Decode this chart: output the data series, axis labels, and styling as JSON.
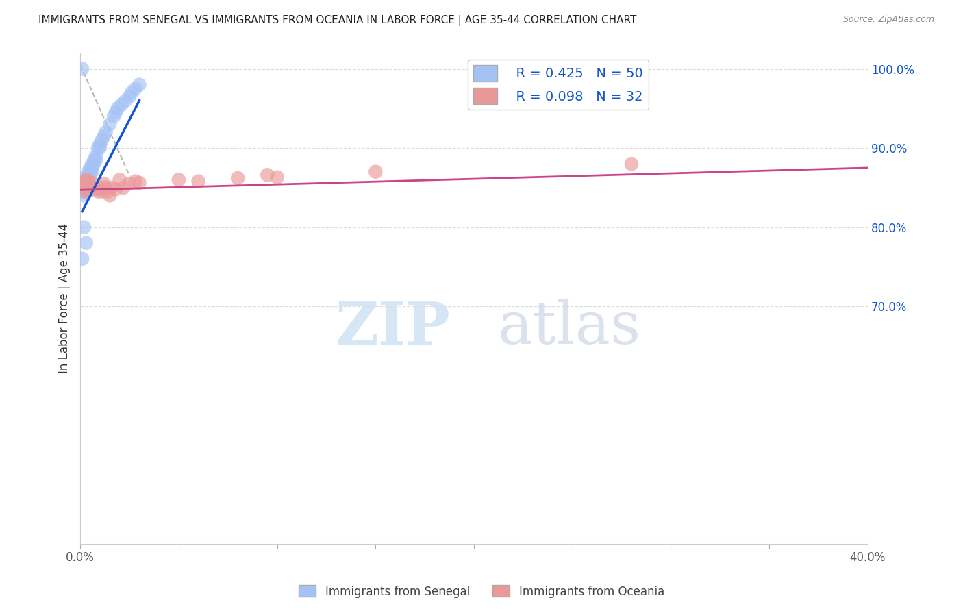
{
  "title": "IMMIGRANTS FROM SENEGAL VS IMMIGRANTS FROM OCEANIA IN LABOR FORCE | AGE 35-44 CORRELATION CHART",
  "source_text": "Source: ZipAtlas.com",
  "ylabel": "In Labor Force | Age 35-44",
  "xlim": [
    0.0,
    0.4
  ],
  "ylim": [
    0.4,
    1.02
  ],
  "yticks_right": [
    1.0,
    0.9,
    0.8,
    0.7
  ],
  "yticklabels_right": [
    "100.0%",
    "90.0%",
    "80.0%",
    "70.0%"
  ],
  "blue_color": "#a4c2f4",
  "pink_color": "#ea9999",
  "blue_line_color": "#1155cc",
  "pink_line_color": "#cc4488",
  "ref_line_color": "#b7b7b7",
  "legend_color": "#1155cc",
  "watermark_color": "#cfe2f3",
  "senegal_R": 0.425,
  "senegal_N": 50,
  "oceania_R": 0.098,
  "oceania_N": 32,
  "senegal_x": [
    0.001,
    0.001,
    0.001,
    0.001,
    0.001,
    0.002,
    0.002,
    0.002,
    0.002,
    0.002,
    0.002,
    0.003,
    0.003,
    0.003,
    0.003,
    0.003,
    0.004,
    0.004,
    0.004,
    0.004,
    0.005,
    0.005,
    0.005,
    0.006,
    0.006,
    0.006,
    0.007,
    0.007,
    0.008,
    0.008,
    0.009,
    0.01,
    0.01,
    0.011,
    0.012,
    0.013,
    0.015,
    0.017,
    0.018,
    0.019,
    0.021,
    0.023,
    0.025,
    0.026,
    0.028,
    0.03,
    0.001,
    0.002,
    0.003,
    0.001
  ],
  "senegal_y": [
    0.858,
    0.855,
    0.852,
    0.848,
    0.845,
    0.862,
    0.858,
    0.855,
    0.85,
    0.845,
    0.84,
    0.86,
    0.856,
    0.853,
    0.85,
    0.845,
    0.87,
    0.865,
    0.86,
    0.855,
    0.875,
    0.87,
    0.865,
    0.88,
    0.875,
    0.87,
    0.885,
    0.88,
    0.89,
    0.885,
    0.9,
    0.905,
    0.9,
    0.91,
    0.915,
    0.92,
    0.93,
    0.94,
    0.945,
    0.95,
    0.955,
    0.96,
    0.965,
    0.97,
    0.975,
    0.98,
    1.0,
    0.8,
    0.78,
    0.76
  ],
  "oceania_x": [
    0.001,
    0.001,
    0.002,
    0.002,
    0.003,
    0.003,
    0.004,
    0.005,
    0.006,
    0.007,
    0.008,
    0.009,
    0.01,
    0.011,
    0.012,
    0.013,
    0.014,
    0.015,
    0.016,
    0.018,
    0.02,
    0.022,
    0.025,
    0.028,
    0.03,
    0.05,
    0.06,
    0.08,
    0.095,
    0.1,
    0.15,
    0.28
  ],
  "oceania_y": [
    0.856,
    0.852,
    0.855,
    0.848,
    0.86,
    0.845,
    0.858,
    0.853,
    0.856,
    0.85,
    0.848,
    0.845,
    0.85,
    0.845,
    0.855,
    0.85,
    0.845,
    0.84,
    0.85,
    0.848,
    0.86,
    0.85,
    0.855,
    0.858,
    0.856,
    0.86,
    0.858,
    0.862,
    0.866,
    0.863,
    0.87,
    0.88
  ],
  "blue_line_x": [
    0.001,
    0.03
  ],
  "blue_line_y": [
    0.82,
    0.96
  ],
  "pink_line_x": [
    0.0,
    0.4
  ],
  "pink_line_y": [
    0.847,
    0.875
  ]
}
